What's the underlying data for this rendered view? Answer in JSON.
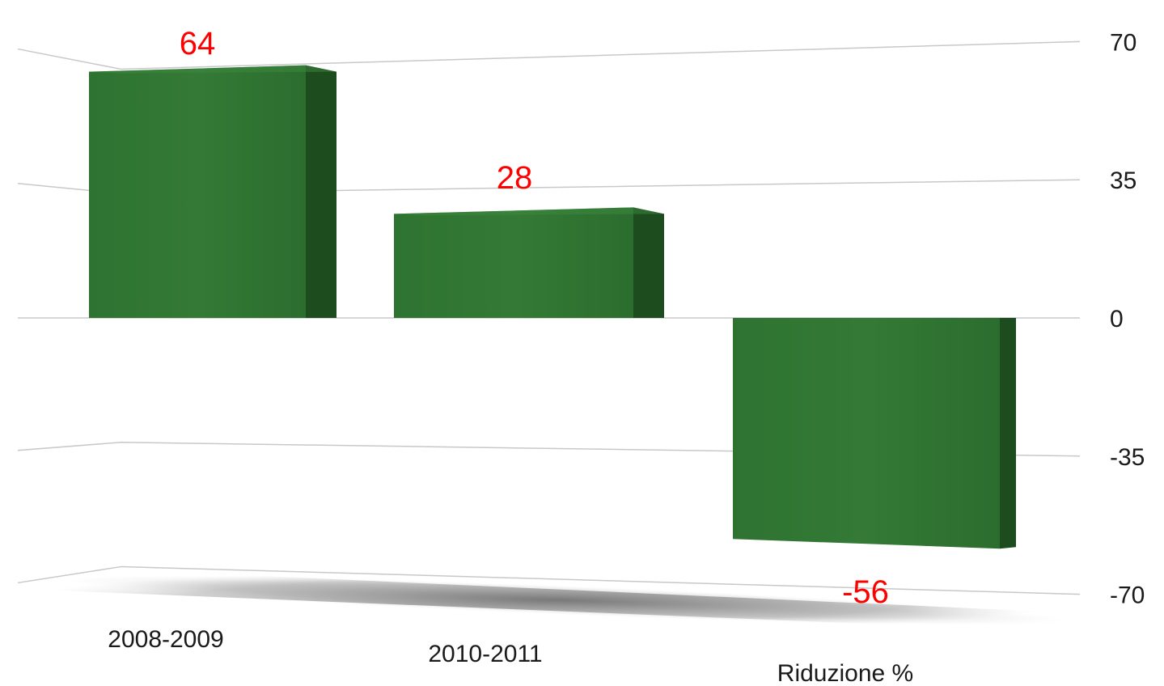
{
  "chart_data": {
    "type": "bar",
    "categories": [
      "2008-2009",
      "2010-2011",
      "Riduzione %"
    ],
    "values": [
      64,
      28,
      -56
    ],
    "ylim": [
      -70,
      70
    ],
    "yticks": [
      "70",
      "35",
      "0",
      "-35",
      "-70"
    ],
    "data_labels": [
      "64",
      "28",
      "-56"
    ],
    "title": "",
    "xlabel": "",
    "ylabel": "",
    "grid": true,
    "y_axis_position": "right",
    "style": "3d"
  },
  "colors": {
    "bar_front": "#2f7532",
    "bar_side": "#1d4d1f",
    "bar_top": "#3d8a40",
    "data_label": "#ff0000",
    "gridline": "#c8c8c8",
    "text": "#1a1a1a"
  }
}
